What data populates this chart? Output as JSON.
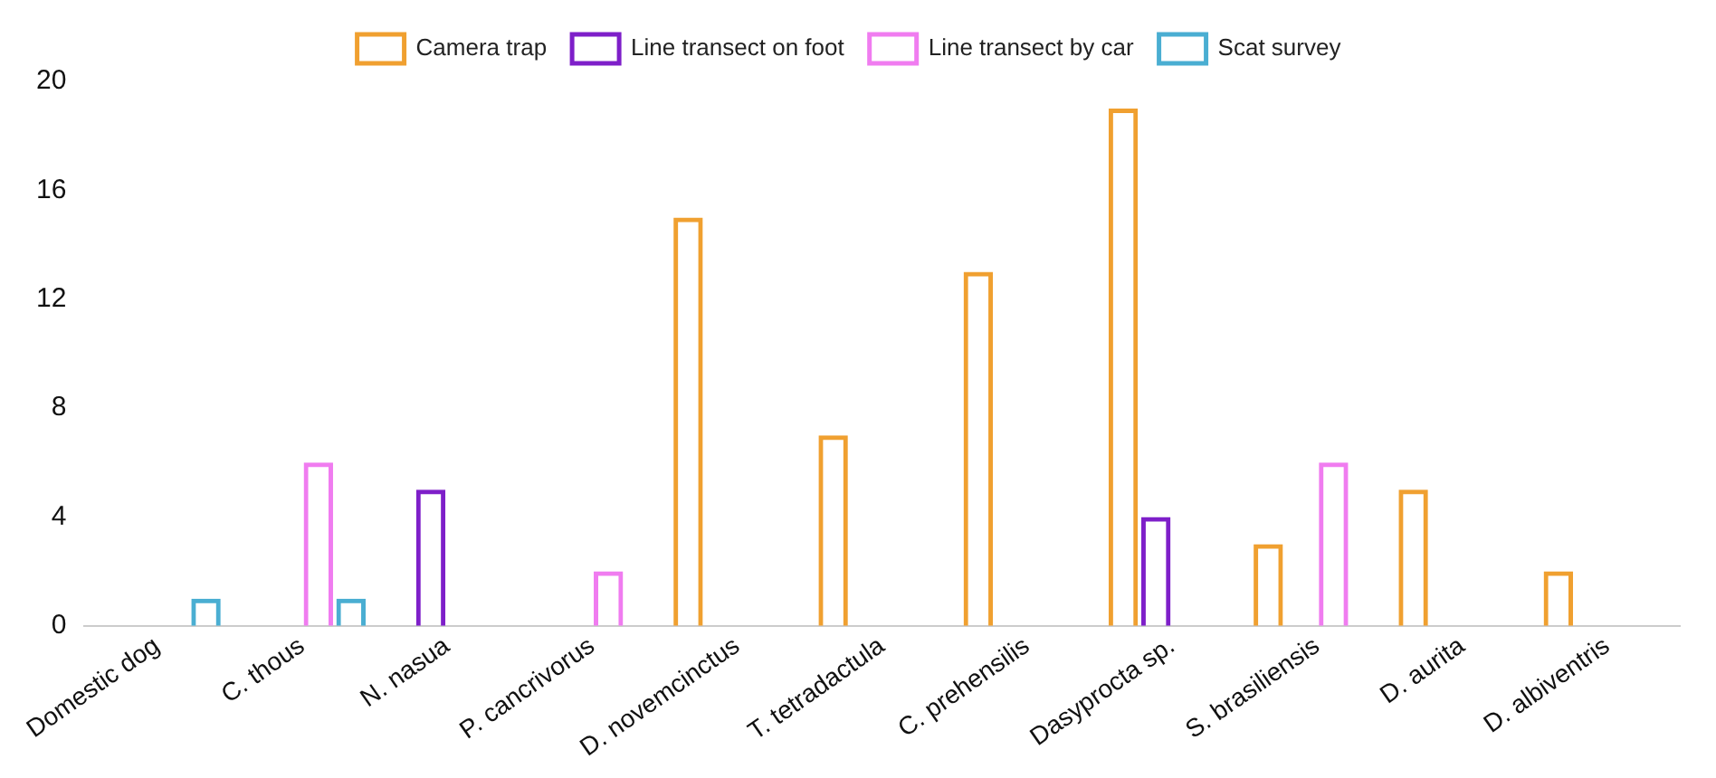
{
  "chart_data": {
    "type": "bar",
    "categories": [
      "Domestic dog",
      "C. thous",
      "N. nasua",
      "P. cancrivorus",
      "D. novemcinctus",
      "T. tetradactula",
      "C. prehensilis",
      "Dasyprocta sp.",
      "S. brasiliensis",
      "D. aurita",
      "D. albiventris"
    ],
    "series": [
      {
        "name": "Camera trap",
        "color": "#f0a030",
        "values": [
          null,
          null,
          null,
          null,
          15,
          7,
          13,
          19,
          3,
          5,
          2
        ]
      },
      {
        "name": "Line transect on foot",
        "color": "#7e1fc9",
        "values": [
          null,
          null,
          5,
          null,
          null,
          null,
          null,
          4,
          null,
          null,
          null
        ]
      },
      {
        "name": "Line transect by car",
        "color": "#f07cf0",
        "values": [
          null,
          6,
          null,
          2,
          null,
          null,
          null,
          null,
          6,
          null,
          null
        ]
      },
      {
        "name": "Scat survey",
        "color": "#4aaed2",
        "values": [
          1,
          1,
          null,
          null,
          null,
          null,
          null,
          null,
          null,
          null,
          null
        ]
      }
    ],
    "ylim": [
      0,
      20
    ],
    "yticks": [
      0,
      4,
      8,
      12,
      16,
      20
    ],
    "legend": "top",
    "grid": false
  }
}
